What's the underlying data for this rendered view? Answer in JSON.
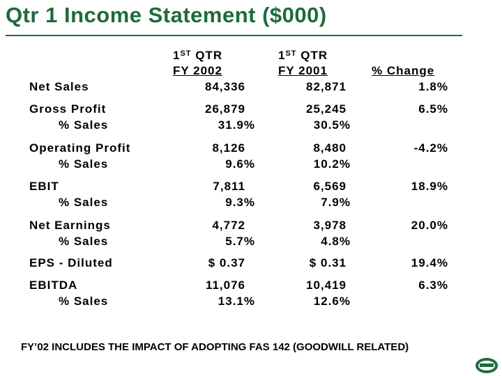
{
  "header": {
    "title": "Qtr 1 Income Statement ($000)"
  },
  "table": {
    "columns": [
      {
        "num": "1",
        "sup": "ST",
        "rest": " QTR",
        "sub": "FY 2002"
      },
      {
        "num": "1",
        "sup": "ST",
        "rest": " QTR",
        "sub": "FY 2001"
      },
      {
        "sub": "% Change"
      }
    ],
    "rows": [
      {
        "label": "Net Sales",
        "values": [
          "84,336",
          "82,871",
          "1.8%"
        ]
      },
      {
        "label": "Gross Profit",
        "values": [
          "26,879",
          "25,245",
          "6.5%"
        ],
        "sub": {
          "label": "% Sales",
          "values": [
            "31.9%",
            "30.5%"
          ]
        }
      },
      {
        "label": "Operating Profit",
        "values": [
          "8,126",
          "8,480",
          "-4.2%"
        ],
        "sub": {
          "label": "% Sales",
          "values": [
            "9.6%",
            "10.2%"
          ]
        }
      },
      {
        "label": "EBIT",
        "values": [
          "7,811",
          "6,569",
          "18.9%"
        ],
        "sub": {
          "label": "% Sales",
          "values": [
            "9.3%",
            "7.9%"
          ]
        }
      },
      {
        "label": "Net Earnings",
        "values": [
          "4,772",
          "3,978",
          "20.0%"
        ],
        "sub": {
          "label": "% Sales",
          "values": [
            "5.7%",
            "4.8%"
          ]
        }
      },
      {
        "label": "EPS - Diluted",
        "values": [
          "$ 0.37",
          "$ 0.31",
          "19.4%"
        ]
      },
      {
        "label": "EBITDA",
        "values": [
          "11,076",
          "10,419",
          "6.3%"
        ],
        "sub": {
          "label": "% Sales",
          "values": [
            "13.1%",
            "12.6%"
          ]
        }
      }
    ]
  },
  "footer": {
    "note": "FY’02 INCLUDES THE IMPACT OF ADOPTING FAS 142 (GOODWILL RELATED)"
  }
}
